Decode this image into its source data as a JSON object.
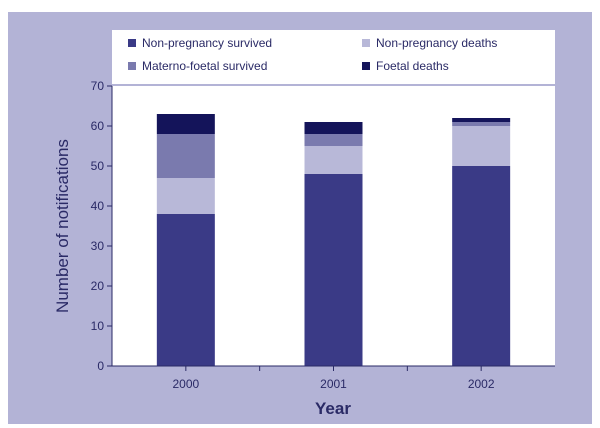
{
  "chart_data": {
    "type": "bar",
    "stacked": true,
    "categories": [
      "2000",
      "2001",
      "2002"
    ],
    "series": [
      {
        "name": "Non-pregnancy survived",
        "values": [
          38,
          48,
          50
        ],
        "color": "#3a3a86"
      },
      {
        "name": "Non-pregnancy deaths",
        "values": [
          9,
          7,
          10
        ],
        "color": "#b8b8d8"
      },
      {
        "name": "Materno-foetal survived",
        "values": [
          11,
          3,
          1
        ],
        "color": "#7a7aae"
      },
      {
        "name": "Foetal deaths",
        "values": [
          5,
          3,
          1
        ],
        "color": "#14145a"
      }
    ],
    "xlabel": "Year",
    "ylabel": "Number of notifications",
    "ylim": [
      0,
      70
    ],
    "yticks": [
      0,
      10,
      20,
      30,
      40,
      50,
      60,
      70
    ],
    "legend_position": "top",
    "grid": false
  }
}
